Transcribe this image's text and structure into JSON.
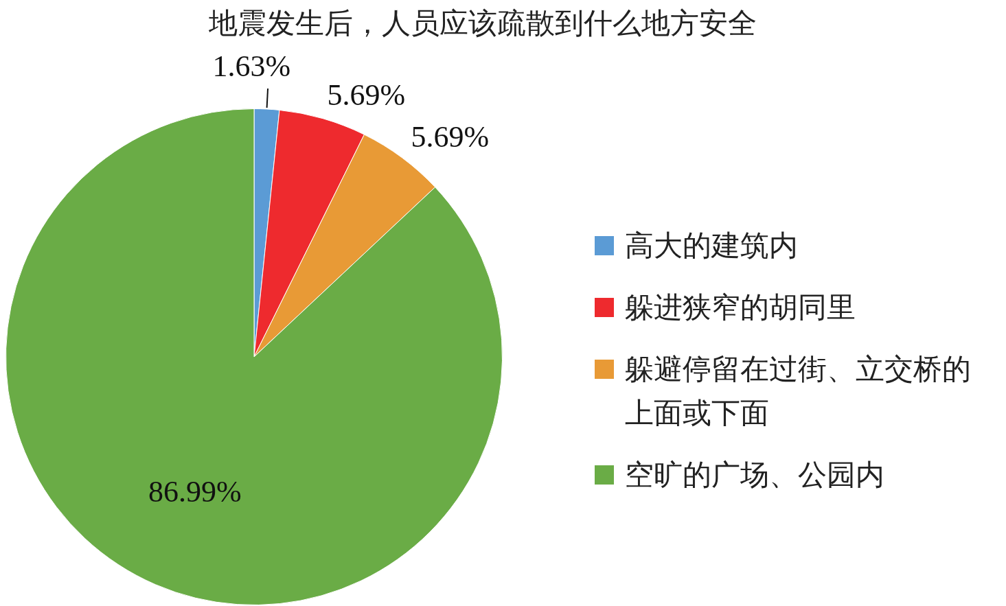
{
  "chart_data": {
    "type": "pie",
    "title": "地震发生后，人员应该疏散到什么地方安全",
    "categories": [
      "高大的建筑内",
      "躲进狭窄的胡同里",
      "躲避停留在过街、立交桥的上面或下面",
      "空旷的广场、公园内"
    ],
    "values": [
      1.63,
      5.69,
      5.69,
      86.99
    ],
    "colors": [
      "#5b9bd5",
      "#ee2a2e",
      "#e89a36",
      "#6aac46"
    ],
    "value_labels": [
      "1.63%",
      "5.69%",
      "5.69%",
      "86.99%"
    ],
    "legend": "right"
  }
}
